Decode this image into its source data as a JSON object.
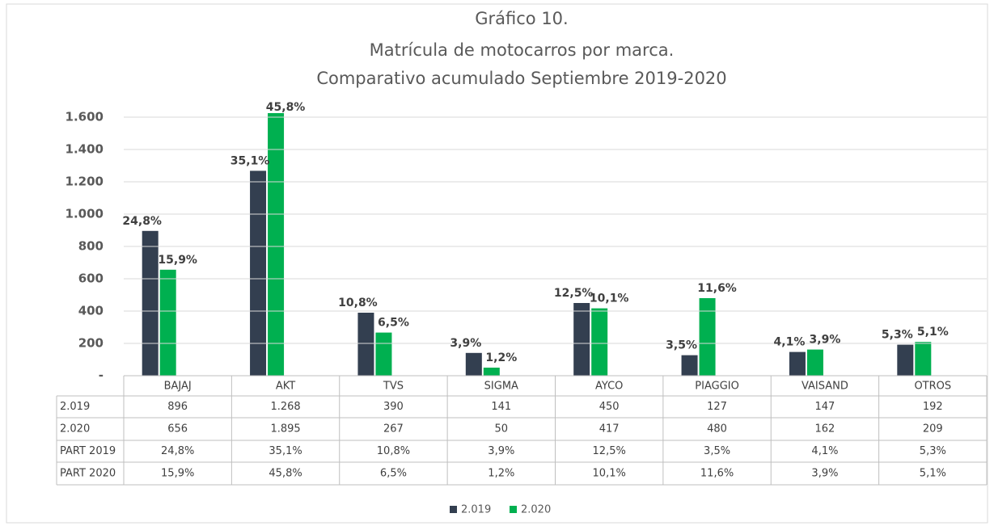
{
  "chart_data": {
    "type": "bar",
    "title": [
      "Gráfico 10.",
      "Matrícula de motocarros por marca.",
      "Comparativo acumulado Septiembre 2019-2020"
    ],
    "categories": [
      "BAJAJ",
      "AKT",
      "TVS",
      "SIGMA",
      "AYCO",
      "PIAGGIO",
      "VAISAND",
      "OTROS"
    ],
    "series": [
      {
        "name": "2.019",
        "color": "#333f50",
        "values": [
          896,
          1268,
          390,
          141,
          450,
          127,
          147,
          192
        ],
        "value_labels": [
          "896",
          "1.268",
          "390",
          "141",
          "450",
          "127",
          "147",
          "192"
        ],
        "share_name": "PART 2019",
        "shares": [
          24.8,
          35.1,
          10.8,
          3.9,
          12.5,
          3.5,
          4.1,
          5.3
        ],
        "share_labels": [
          "24,8%",
          "35,1%",
          "10,8%",
          "3,9%",
          "12,5%",
          "3,5%",
          "4,1%",
          "5,3%"
        ]
      },
      {
        "name": "2.020",
        "color": "#00b050",
        "values": [
          656,
          1895,
          267,
          50,
          417,
          480,
          162,
          209
        ],
        "value_labels": [
          "656",
          "1.895",
          "267",
          "50",
          "417",
          "480",
          "162",
          "209"
        ],
        "share_name": "PART 2020",
        "shares": [
          15.9,
          45.8,
          6.5,
          1.2,
          10.1,
          11.6,
          3.9,
          5.1
        ],
        "share_labels": [
          "15,9%",
          "45,8%",
          "6,5%",
          "1,2%",
          "10,1%",
          "11,6%",
          "3,9%",
          "5,1%"
        ]
      }
    ],
    "ylim": [
      0,
      1600
    ],
    "yticks": [
      {
        "value": 0,
        "label": "-"
      },
      200,
      400,
      600,
      800,
      {
        "value": 1000,
        "label": "1.000"
      },
      {
        "value": 1200,
        "label": "1.200"
      },
      {
        "value": 1400,
        "label": "1.400"
      },
      {
        "value": 1600,
        "label": "1.600"
      }
    ],
    "grid": true
  }
}
